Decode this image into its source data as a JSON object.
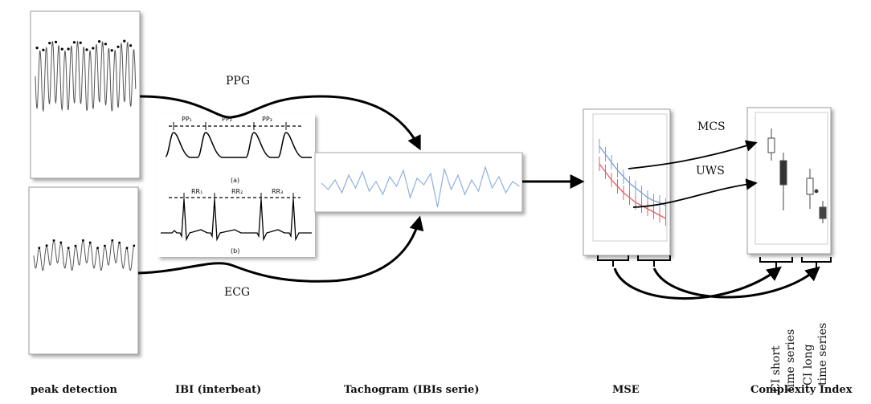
{
  "stage_labels": {
    "peak_detection": "peak detection",
    "ibi": "IBI (interbeat)",
    "tachogram": "Tachogram  (IBIs serie)",
    "mse": "MSE",
    "complexity_index": "Complexity  Index"
  },
  "signal_labels": {
    "ppg": "PPG",
    "ecg": "ECG"
  },
  "ibi_panel": {
    "pp": [
      "PP₁",
      "PP₂",
      "PP₃"
    ],
    "rr": [
      "RR₁",
      "RR₂",
      "RR₃"
    ],
    "caption_a": "(a)",
    "caption_b": "(b)"
  },
  "group_labels": {
    "mcs": "MCS",
    "uws": "UWS"
  },
  "ci_labels": {
    "short": [
      "CI short",
      "time series"
    ],
    "long": [
      "CI long",
      "time series"
    ]
  },
  "colors": {
    "blue_series": "#7a9fd8",
    "red_series": "#e0606a",
    "line": "#000000"
  }
}
